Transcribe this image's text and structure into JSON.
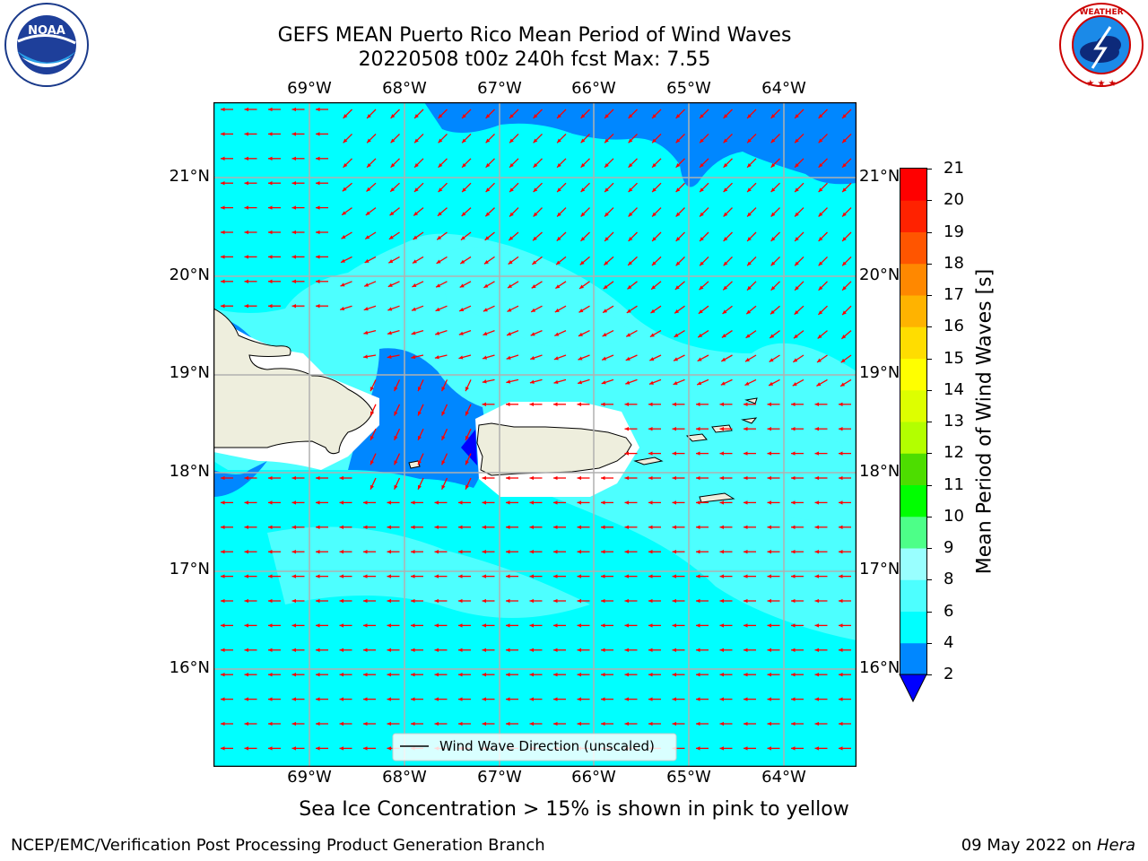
{
  "title": {
    "line1": "GEFS MEAN Puerto Rico Mean Period of Wind Waves",
    "line2": "20220508 t00z 240h fcst   Max: 7.55"
  },
  "map": {
    "lon_labels": [
      "69°W",
      "68°W",
      "67°W",
      "66°W",
      "65°W",
      "64°W"
    ],
    "lat_labels": [
      "21°N",
      "20°N",
      "19°N",
      "18°N",
      "17°N",
      "16°N"
    ],
    "lon_range": [
      -70.0,
      -63.3
    ],
    "lat_range": [
      15.0,
      21.75
    ],
    "legend_label": "Wind Wave Direction (unscaled)",
    "arrow_color": "#ff0000"
  },
  "colorbar": {
    "label": "Mean Period of Wind Waves [s]",
    "ticks": [
      "2",
      "4",
      "6",
      "8",
      "9",
      "10",
      "11",
      "12",
      "13",
      "14",
      "15",
      "16",
      "17",
      "18",
      "19",
      "20",
      "21"
    ],
    "colors": [
      "#0030ff",
      "#0087ff",
      "#00ffff",
      "#4dffff",
      "#99ffff",
      "#4dff88",
      "#00ff00",
      "#4ddd00",
      "#b3ff00",
      "#ddff00",
      "#ffff00",
      "#ffdd00",
      "#ffb300",
      "#ff8800",
      "#ff5500",
      "#ff2200",
      "#ff0000"
    ],
    "extend_color": "#0000ff"
  },
  "chart_data": {
    "type": "heatmap",
    "title": "GEFS MEAN Puerto Rico Mean Period of Wind Waves",
    "subtitle": "20220508 t00z 240h fcst   Max: 7.55",
    "xlabel": "",
    "ylabel": "",
    "colorbar_label": "Mean Period of Wind Waves [s]",
    "x_ticks": [
      "69°W",
      "68°W",
      "67°W",
      "66°W",
      "65°W",
      "64°W"
    ],
    "y_ticks": [
      "21°N",
      "20°N",
      "19°N",
      "18°N",
      "17°N",
      "16°N"
    ],
    "value_max": 7.55,
    "grid": true,
    "legend": "bottom-center"
  },
  "footer": {
    "note": "Sea Ice Concentration > 15% is shown in pink to yellow",
    "branch": "NCEP/EMC/Verification Post Processing Product Generation Branch",
    "date": "09 May 2022 on",
    "machine": "Hera"
  },
  "logos": {
    "noaa_text": "NOAA",
    "noaa_ring": "NATIONAL OCEANIC AND ATMOSPHERIC ADMINISTRATION",
    "noaa_ring_bottom": "U.S. DEPARTMENT OF COMMERCE",
    "nws_ring": "NATIONAL WEATHER SERVICE"
  }
}
